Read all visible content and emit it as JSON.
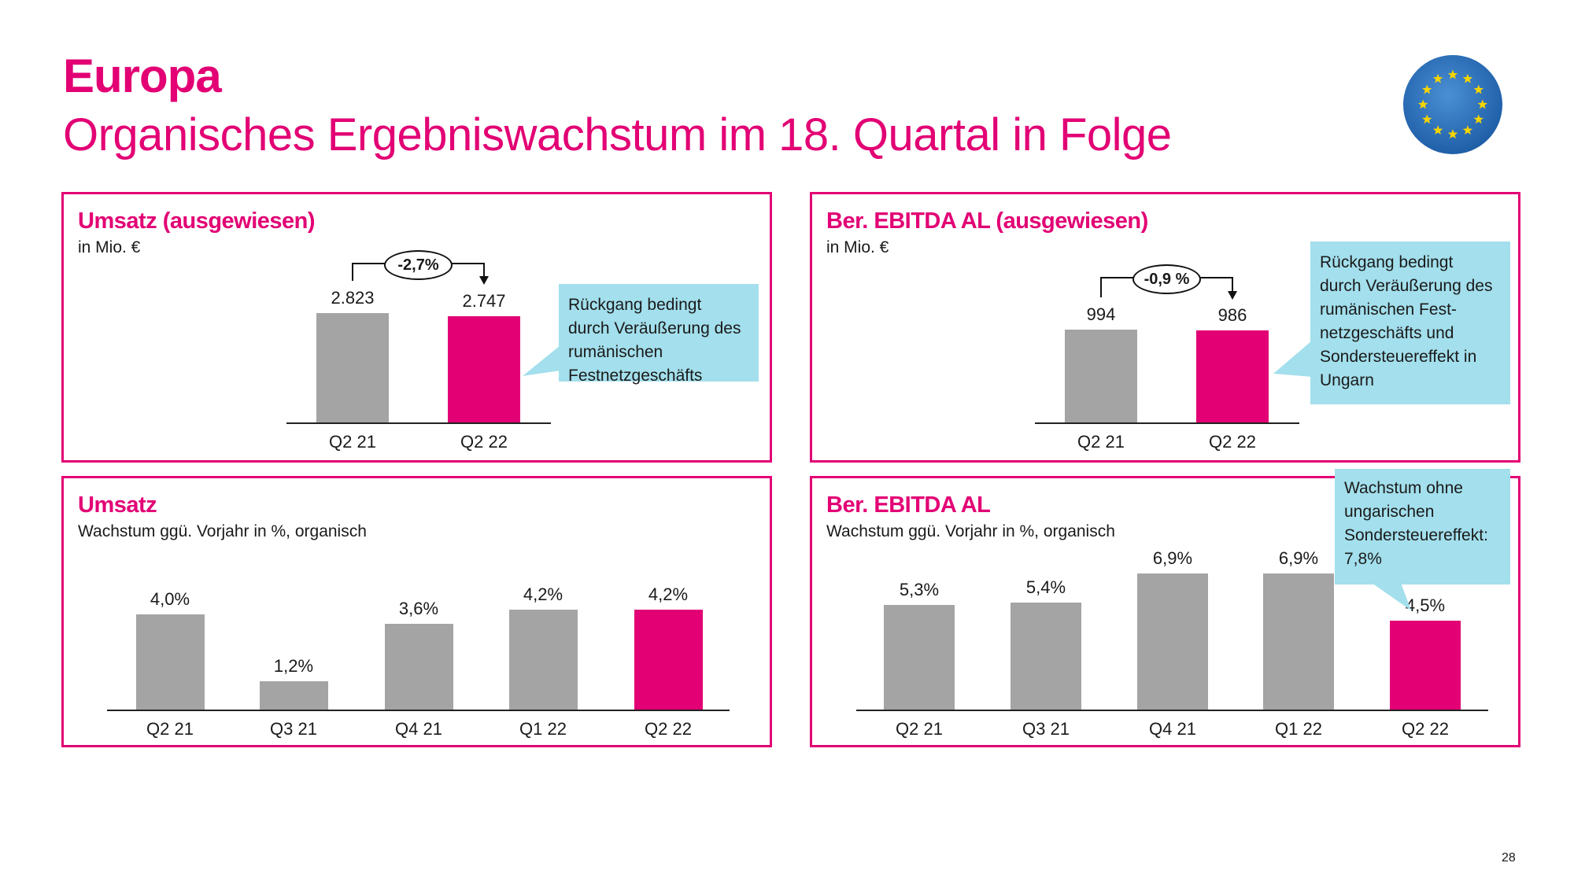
{
  "header": {
    "title": "Europa",
    "subtitle": "Organisches Ergebniswachstum im 18. Quartal in Folge",
    "logo_icon": "eu-flag-icon"
  },
  "colors": {
    "accent": "#e20074",
    "bar_gray": "#a4a4a4",
    "callout": "#a3dfec"
  },
  "panels": [
    {
      "title": "Umsatz (ausgewiesen)",
      "subtitle": "in Mio. €",
      "change": "-2,7%",
      "callout": [
        "Rückgang bedingt",
        "durch Veräußerung des",
        "rumänischen",
        "Festnetzgeschäfts"
      ]
    },
    {
      "title": "Ber. EBITDA AL (ausgewiesen)",
      "subtitle": "in Mio. €",
      "change": "-0,9 %",
      "callout": [
        "Rückgang bedingt",
        "durch Veräußerung des",
        "rumänischen Fest-",
        "netzgeschäfts und",
        "Sondersteuereffekt in",
        "Ungarn"
      ]
    },
    {
      "title": "Umsatz",
      "subtitle": "Wachstum ggü. Vorjahr in %, organisch"
    },
    {
      "title": "Ber. EBITDA AL",
      "subtitle": "Wachstum ggü. Vorjahr in %, organisch",
      "callout": [
        "Wachstum ohne",
        "ungarischen",
        "Sondersteuereffekt:",
        "7,8%"
      ]
    }
  ],
  "chart_data": [
    {
      "type": "bar",
      "title": "Umsatz (ausgewiesen)",
      "ylabel": "in Mio. €",
      "categories": [
        "Q2 21",
        "Q2 22"
      ],
      "values": [
        2823,
        2747
      ],
      "labels": [
        "2.823",
        "2.747"
      ],
      "highlight": 1
    },
    {
      "type": "bar",
      "title": "Ber. EBITDA AL (ausgewiesen)",
      "ylabel": "in Mio. €",
      "categories": [
        "Q2 21",
        "Q2 22"
      ],
      "values": [
        994,
        986
      ],
      "labels": [
        "994",
        "986"
      ],
      "highlight": 1
    },
    {
      "type": "bar",
      "title": "Umsatz",
      "ylabel": "Wachstum ggü. Vorjahr in %, organisch",
      "categories": [
        "Q2 21",
        "Q3 21",
        "Q4 21",
        "Q1 22",
        "Q2 22"
      ],
      "values": [
        4.0,
        1.2,
        3.6,
        4.2,
        4.2
      ],
      "labels": [
        "4,0%",
        "1,2%",
        "3,6%",
        "4,2%",
        "4,2%"
      ],
      "highlight": 4
    },
    {
      "type": "bar",
      "title": "Ber. EBITDA AL",
      "ylabel": "Wachstum ggü. Vorjahr in %, organisch",
      "categories": [
        "Q2 21",
        "Q3 21",
        "Q4 21",
        "Q1 22",
        "Q2 22"
      ],
      "values": [
        5.3,
        5.4,
        6.9,
        6.9,
        4.5
      ],
      "labels": [
        "5,3%",
        "5,4%",
        "6,9%",
        "6,9%",
        "4,5%"
      ],
      "highlight": 4
    }
  ],
  "footer": {
    "page_number": "28"
  }
}
